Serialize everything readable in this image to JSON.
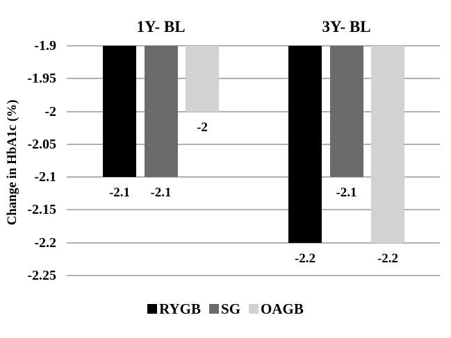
{
  "chart_data": {
    "type": "bar",
    "title": "",
    "ylabel": "Change in HbA1c (%)",
    "xlabel": "",
    "group_labels": [
      "1Y- BL",
      "3Y- BL"
    ],
    "y_ticks": [
      "-1.9",
      "-1.95",
      "-2",
      "-2.05",
      "-2.1",
      "-2.15",
      "-2.2",
      "-2.25"
    ],
    "y_axis": {
      "top": -1.9,
      "bottom": -2.25,
      "step": 0.05
    },
    "baseline": -1.9,
    "grid": true,
    "legend_position": "bottom",
    "series": [
      {
        "name": "RYGB",
        "color": "#000000",
        "values": [
          -2.1,
          -2.2
        ],
        "labels": [
          "-2.1",
          "-2.2"
        ]
      },
      {
        "name": "SG",
        "color": "#6b6b6b",
        "values": [
          -2.1,
          -2.1
        ],
        "labels": [
          "-2.1",
          "-2.1"
        ]
      },
      {
        "name": "OAGB",
        "color": "#d2d2d2",
        "values": [
          -2.0,
          -2.2
        ],
        "labels": [
          "-2",
          "-2.2"
        ]
      }
    ],
    "colors": {
      "gridline": "#b0b0b0",
      "text": "#000000",
      "background": "#ffffff"
    }
  }
}
